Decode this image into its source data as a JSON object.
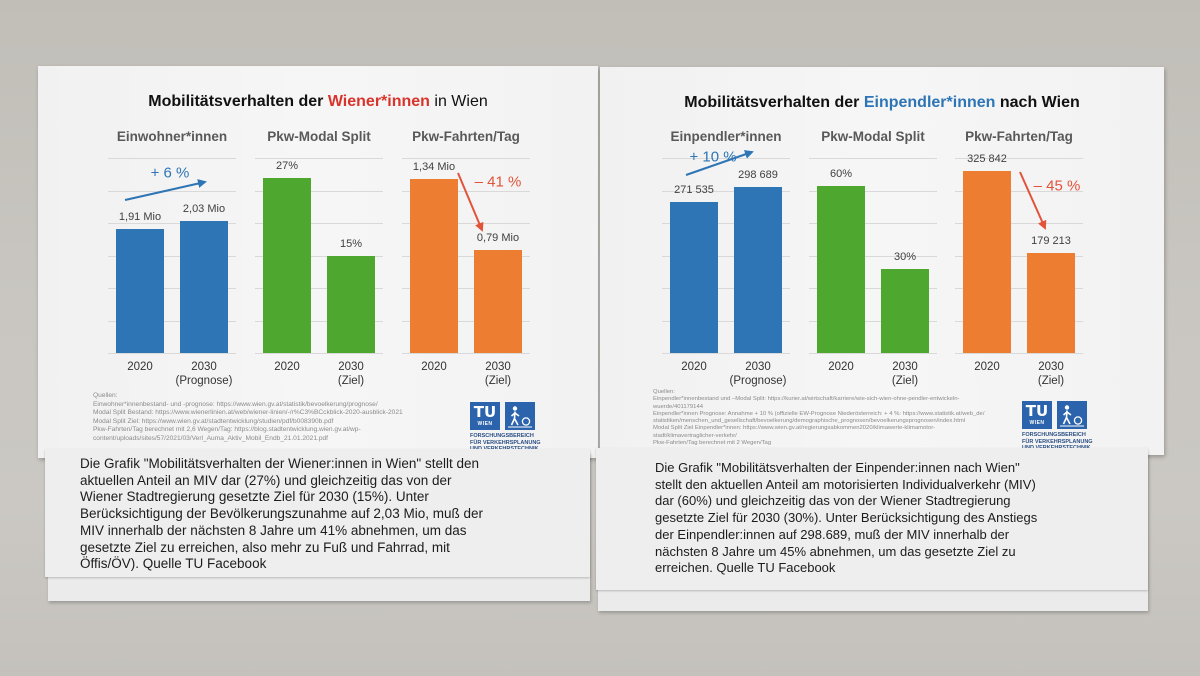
{
  "posters": [
    {
      "title_prefix": "Mobilitätsverhalten der ",
      "title_highlight": "Wiener*innen",
      "title_suffix": " in Wien",
      "highlight_color": "#d9342b",
      "sources": [
        "Quellen:",
        "Einwohner*innenbestand- und -prognose: https://www.wien.gv.at/statistik/bevoelkerung/prognose/",
        "Modal Split Bestand: https://www.wienerlinien.at/web/wiener-linien/-/r%C3%BCckblick-2020-ausblick-2021",
        "Modal Split Ziel: https://www.wien.gv.at/stadtentwicklung/studien/pdf/b008390b.pdf",
        "Pkw-Fahrten/Tag berechnet mit 2,6 Wegen/Tag: https://blog.stadtentwicklung.wien.gv.at/wp-",
        "content/uploads/sites/57/2021/03/Verl_Auma_Aktiv_Mobil_Endb_21.01.2021.pdf"
      ],
      "logo": {
        "mark": "TU",
        "name": "WIEN",
        "color": "#2b64ad",
        "institute": [
          "FORSCHUNGSBEREICH",
          "FÜR VERKEHRSPLANUNG",
          "UND VERKEHRSTECHNIK"
        ]
      },
      "caption_lines": [
        "Die Grafik \"Mobilitätsverhalten der Wiener:innen in Wien\" stellt den",
        "aktuellen Anteil an MIV dar (27%) und gleichzeitig das von der",
        "Wiener Stadtregierung gesetzte Ziel für 2030 (15%). Unter",
        "Berücksichtigung der Bevölkerungszunahme auf 2,03 Mio, muß der",
        "MIV innerhalb der nächsten 8 Jahre um 41% abnehmen, um das",
        "gesetzte Ziel zu erreichen, also mehr zu Fuß und Fahrrad, mit",
        "Öffis/ÖV). Quelle TU Facebook"
      ]
    },
    {
      "title_prefix": "Mobilitätsverhalten der ",
      "title_highlight": "Einpendler*innen",
      "title_suffix": " nach Wien",
      "highlight_color": "#2e75b6",
      "sources": [
        "Quellen:",
        "Einpendler*innenbestand und –Modal Split: https://kurier.at/wirtschaft/karriere/wie-sich-wien-ohne-pendler-entwickeln-",
        "wuerde/401179144",
        "Einpendler*innen Prognose: Annahme + 10 % (offizielle EW-Prognose Niederösterreich: + 4 %: https://www.statistik.at/web_de/",
        "statistiken/menschen_und_gesellschaft/bevoelkerung/demographische_prognosen/bevoelkerungsprognosen/index.html",
        "Modal Split Ziel Einpendler*innen: https://www.wien.gv.at/regierungsabkommen2020/klimawerte-klimamotor-",
        "stadt/klimavertraglicher-verkehr/",
        "Pkw-Fahrten/Tag berechnet mit 2 Wegen/Tag"
      ],
      "logo": {
        "mark": "TU",
        "name": "WIEN",
        "color": "#2b64ad",
        "institute": [
          "FORSCHUNGSBEREICH",
          "FÜR VERKEHRSPLANUNG",
          "UND VERKEHRSTECHNIK"
        ]
      },
      "caption_lines": [
        "Die Grafik \"Mobilitätsverhalten der Einpender:innen nach Wien\"",
        "stellt den aktuellen Anteil am motorisierten Individualverkehr (MIV)",
        "dar (60%) und gleichzeitig das von der Wiener Stadtregierung",
        "gesetzte Ziel für 2030 (30%). Unter Berücksichtigung des Anstiegs",
        "der Einpendler:innen auf 298.689, muß der MIV innerhalb der",
        "nächsten 8 Jahre um 45% abnehmen, um das gesetzte Ziel zu",
        "erreichen. Quelle TU Facebook"
      ]
    }
  ],
  "chart_data": [
    {
      "type": "bar",
      "title": "Einwohner*innen",
      "categories": [
        "2020",
        "2030"
      ],
      "category_notes": [
        "",
        "(Prognose)"
      ],
      "values": [
        1.91,
        2.03
      ],
      "value_labels": [
        "1,91 Mio",
        "2,03 Mio"
      ],
      "ylim": [
        0,
        3
      ],
      "grid": true,
      "color": "#2e75b6",
      "annotation": "+ 6 %",
      "annotation_color": "#2e75b6"
    },
    {
      "type": "bar",
      "title": "Pkw-Modal Split",
      "categories": [
        "2020",
        "2030"
      ],
      "category_notes": [
        "",
        "(Ziel)"
      ],
      "values": [
        27,
        15
      ],
      "value_labels": [
        "27%",
        "15%"
      ],
      "ylim": [
        0,
        30
      ],
      "grid": true,
      "color": "#4ea72e",
      "annotation": "",
      "annotation_color": ""
    },
    {
      "type": "bar",
      "title": "Pkw-Fahrten/Tag",
      "categories": [
        "2020",
        "2030"
      ],
      "category_notes": [
        "",
        "(Ziel)"
      ],
      "values": [
        1.34,
        0.79
      ],
      "value_labels": [
        "1,34 Mio",
        "0,79 Mio"
      ],
      "ylim": [
        0,
        1.5
      ],
      "grid": true,
      "color": "#ed7d31",
      "annotation": "– 41 %",
      "annotation_color": "#e2533a"
    },
    {
      "type": "bar",
      "title": "Einpendler*innen",
      "categories": [
        "2020",
        "2030"
      ],
      "category_notes": [
        "",
        "(Prognose)"
      ],
      "values": [
        271535,
        298689
      ],
      "value_labels": [
        "271 535",
        "298 689"
      ],
      "ylim": [
        0,
        350000
      ],
      "grid": true,
      "color": "#2e75b6",
      "annotation": "+ 10 %",
      "annotation_color": "#2e75b6"
    },
    {
      "type": "bar",
      "title": "Pkw-Modal Split",
      "categories": [
        "2020",
        "2030"
      ],
      "category_notes": [
        "",
        "(Ziel)"
      ],
      "values": [
        60,
        30
      ],
      "value_labels": [
        "60%",
        "30%"
      ],
      "ylim": [
        0,
        70
      ],
      "grid": true,
      "color": "#4ea72e",
      "annotation": "",
      "annotation_color": ""
    },
    {
      "type": "bar",
      "title": "Pkw-Fahrten/Tag",
      "categories": [
        "2020",
        "2030"
      ],
      "category_notes": [
        "",
        "(Ziel)"
      ],
      "values": [
        325842,
        179213
      ],
      "value_labels": [
        "325 842",
        "179 213"
      ],
      "ylim": [
        0,
        350000
      ],
      "grid": true,
      "color": "#ed7d31",
      "annotation": "– 45 %",
      "annotation_color": "#e2533a"
    }
  ]
}
